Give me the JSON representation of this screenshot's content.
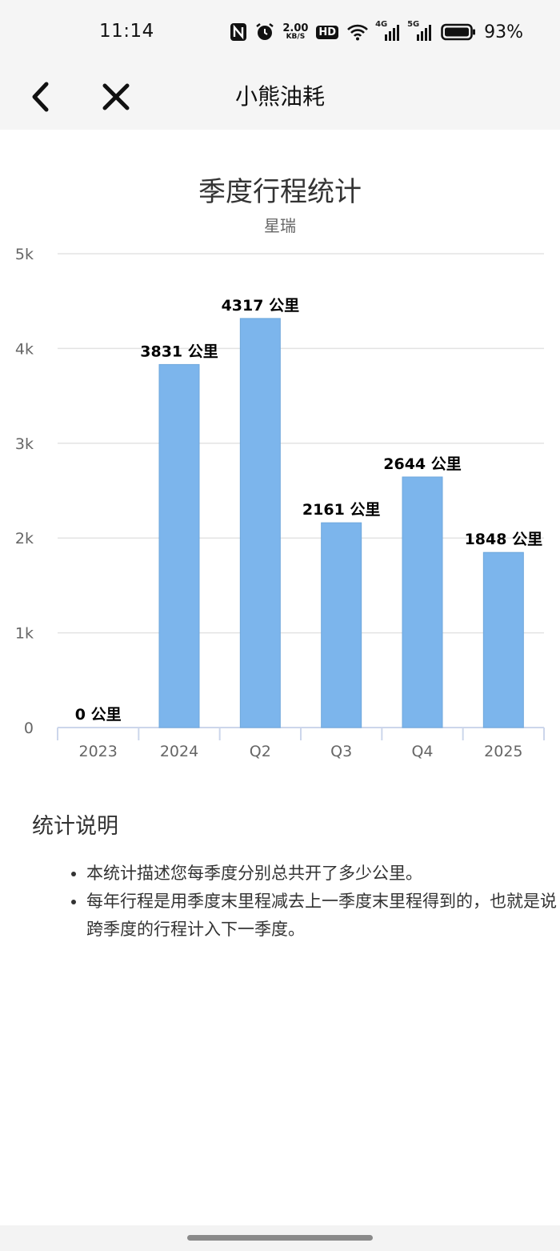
{
  "status_bar": {
    "time": "11:14",
    "net_speed_value": "2.00",
    "net_speed_unit": "KB/S",
    "hd_label": "HD",
    "signal1_label": "4G",
    "signal2_label": "5G",
    "battery": "93%"
  },
  "nav": {
    "title": "小熊油耗",
    "back_icon": "chevron-left-icon",
    "close_icon": "close-icon"
  },
  "chart_data": {
    "type": "bar",
    "title": "季度行程统计",
    "subtitle": "星瑞",
    "categories": [
      "2023",
      "2024",
      "Q2",
      "Q3",
      "Q4",
      "2025"
    ],
    "values": [
      0,
      3831,
      4317,
      2161,
      2644,
      1848
    ],
    "value_labels": [
      "0 公里",
      "3831 公里",
      "4317 公里",
      "2161 公里",
      "2644 公里",
      "1848 公里"
    ],
    "y_ticks": [
      0,
      1000,
      2000,
      3000,
      4000,
      5000
    ],
    "y_tick_labels": [
      "0",
      "1k",
      "2k",
      "3k",
      "4k",
      "5k"
    ],
    "ylim": [
      0,
      5000
    ],
    "grid": true,
    "bar_color": "#7cb5ec"
  },
  "notes": {
    "title": "统计说明",
    "items": [
      "本统计描述您每季度分别总共开了多少公里。",
      "每年行程是用季度末里程减去上一季度末里程得到的，也就是说跨季度的行程计入下一季度。"
    ]
  }
}
